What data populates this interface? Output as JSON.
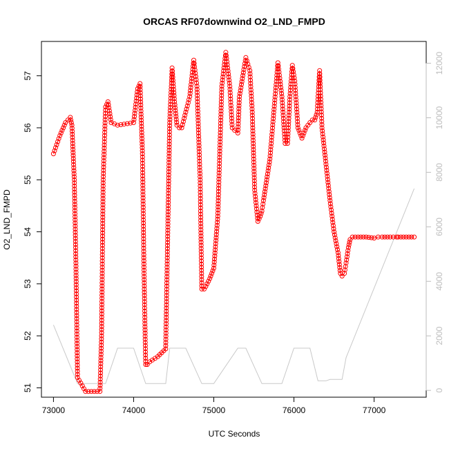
{
  "chart_data": {
    "type": "line",
    "title": "ORCAS RF07downwind O2_LND_FMPD",
    "xlabel": "UTC Seconds",
    "ylabel": "O2_LND_FMPD",
    "xlim": [
      72850,
      77650
    ],
    "ylim": [
      50.82,
      57.66
    ],
    "y2lim": [
      -250,
      12800
    ],
    "x_ticks": [
      73000,
      74000,
      75000,
      76000,
      77000
    ],
    "y_ticks": [
      51,
      52,
      53,
      54,
      55,
      56,
      57
    ],
    "y2_ticks": [
      0,
      2000,
      4000,
      6000,
      8000,
      10000,
      12000
    ],
    "grid": false,
    "colors": {
      "primary": "#ff0000",
      "secondary": "#c8c8c8",
      "axis": "#000000",
      "right_axis": "#bdbdbd"
    },
    "series": [
      {
        "role": "primary",
        "marker": "open-circle",
        "x": [
          73000,
          73080,
          73150,
          73210,
          73230,
          73260,
          73280,
          73300,
          73400,
          73580,
          73600,
          73620,
          73650,
          73680,
          73720,
          73800,
          74000,
          74050,
          74080,
          74110,
          74130,
          74150,
          74170,
          74200,
          74300,
          74400,
          74420,
          74450,
          74480,
          74510,
          74540,
          74570,
          74600,
          74700,
          74750,
          74790,
          74830,
          74850,
          74880,
          74900,
          74950,
          75000,
          75050,
          75100,
          75150,
          75200,
          75230,
          75260,
          75300,
          75320,
          75400,
          75450,
          75480,
          75510,
          75550,
          75580,
          75600,
          75620,
          75700,
          75800,
          75850,
          75890,
          75920,
          75950,
          75980,
          76010,
          76050,
          76100,
          76150,
          76200,
          76230,
          76260,
          76290,
          76320,
          76350,
          76400,
          76450,
          76500,
          76550,
          76580,
          76600,
          76630,
          76650,
          76680,
          76700,
          76730,
          76800,
          76900,
          77000,
          77050,
          77100,
          77200,
          77280,
          77300,
          77400,
          77500
        ],
        "y": [
          55.5,
          55.85,
          56.1,
          56.2,
          56.05,
          55.0,
          53.4,
          51.2,
          50.93,
          50.93,
          52.0,
          55.0,
          56.4,
          56.5,
          56.1,
          56.05,
          56.1,
          56.75,
          56.85,
          55.5,
          53.2,
          51.45,
          51.45,
          51.5,
          51.6,
          51.75,
          53.5,
          56.1,
          57.15,
          56.5,
          56.05,
          56.0,
          56.0,
          56.6,
          57.3,
          56.8,
          55.0,
          52.9,
          52.9,
          52.95,
          53.1,
          53.3,
          54.3,
          56.8,
          57.45,
          56.8,
          56.0,
          55.95,
          55.9,
          56.6,
          57.35,
          57.1,
          56.3,
          54.8,
          54.2,
          54.3,
          54.4,
          54.6,
          55.4,
          57.25,
          56.6,
          55.7,
          55.7,
          56.6,
          57.2,
          56.9,
          56.0,
          55.8,
          56.0,
          56.1,
          56.15,
          56.15,
          56.3,
          57.1,
          56.0,
          55.3,
          54.6,
          54.0,
          53.6,
          53.2,
          53.15,
          53.2,
          53.4,
          53.7,
          53.85,
          53.9,
          53.9,
          53.9,
          53.88,
          53.9,
          53.9,
          53.9,
          53.9,
          53.9,
          53.9,
          53.9
        ]
      },
      {
        "role": "secondary",
        "axis": "right",
        "x": [
          73000,
          73300,
          73650,
          73800,
          74000,
          74150,
          74400,
          74450,
          74650,
          74850,
          75000,
          75300,
          75400,
          75600,
          75850,
          76000,
          76100,
          76200,
          76300,
          76400,
          76450,
          76550,
          76600,
          76650,
          77500
        ],
        "y": [
          2400,
          250,
          250,
          1550,
          1550,
          250,
          250,
          1550,
          1550,
          250,
          250,
          1550,
          1550,
          250,
          250,
          1550,
          1550,
          1550,
          350,
          350,
          400,
          400,
          400,
          1200,
          7400
        ]
      }
    ]
  }
}
